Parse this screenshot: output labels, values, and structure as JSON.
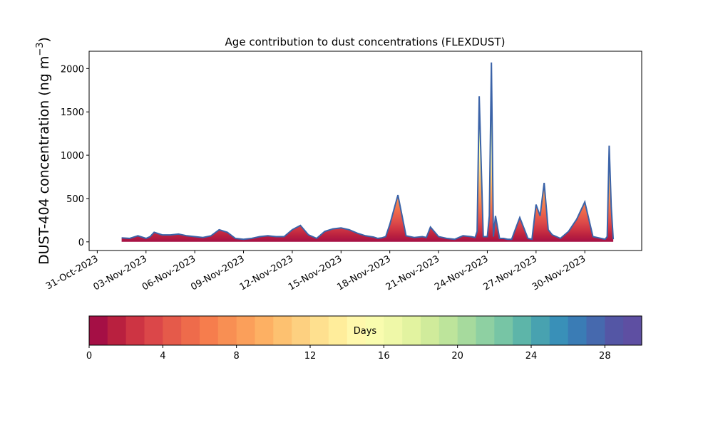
{
  "chart_data": [
    {
      "type": "area",
      "title": "Age contribution to dust concentrations (FLEXDUST)",
      "ylabel_main": "DUST-404 concentration (ng m",
      "ylabel_sup": "−3",
      "ylabel_close": ")",
      "xlabel": "",
      "x_is_date": true,
      "xlim": [
        "2023-10-30T12:00",
        "2023-12-03T12:00"
      ],
      "ylim": [
        -100,
        2200
      ],
      "y_ticks": [
        0,
        500,
        1000,
        1500,
        2000
      ],
      "x_ticks": [
        "31-Oct-2023",
        "03-Nov-2023",
        "06-Nov-2023",
        "09-Nov-2023",
        "12-Nov-2023",
        "15-Nov-2023",
        "18-Nov-2023",
        "21-Nov-2023",
        "24-Nov-2023",
        "27-Nov-2023",
        "30-Nov-2023"
      ],
      "grid": false,
      "series": [
        {
          "x": [
            "2023-11-01T12:00",
            "2023-11-02T00:00",
            "2023-11-02T12:00",
            "2023-11-03T00:00",
            "2023-11-03T06:00",
            "2023-11-03T12:00",
            "2023-11-04T00:00",
            "2023-11-04T12:00",
            "2023-11-05T00:00",
            "2023-11-05T12:00",
            "2023-11-06T00:00",
            "2023-11-06T12:00",
            "2023-11-07T00:00",
            "2023-11-07T12:00",
            "2023-11-08T00:00",
            "2023-11-08T12:00",
            "2023-11-09T00:00",
            "2023-11-09T12:00",
            "2023-11-10T00:00",
            "2023-11-10T12:00",
            "2023-11-11T00:00",
            "2023-11-11T06:00",
            "2023-11-11T12:00",
            "2023-11-12T00:00",
            "2023-11-12T12:00",
            "2023-11-13T00:00",
            "2023-11-13T12:00",
            "2023-11-14T00:00",
            "2023-11-14T12:00",
            "2023-11-15T00:00",
            "2023-11-15T12:00",
            "2023-11-16T00:00",
            "2023-11-16T12:00",
            "2023-11-17T00:00",
            "2023-11-17T06:00",
            "2023-11-17T12:00",
            "2023-11-17T18:00",
            "2023-11-18T00:00",
            "2023-11-18T12:00",
            "2023-11-19T00:00",
            "2023-11-19T12:00",
            "2023-11-20T00:00",
            "2023-11-20T06:00",
            "2023-11-20T12:00",
            "2023-11-21T00:00",
            "2023-11-21T12:00",
            "2023-11-22T00:00",
            "2023-11-22T12:00",
            "2023-11-23T00:00",
            "2023-11-23T06:00",
            "2023-11-23T09:00",
            "2023-11-23T12:00",
            "2023-11-23T18:00",
            "2023-11-24T00:00",
            "2023-11-24T03:00",
            "2023-11-24T06:00",
            "2023-11-24T09:00",
            "2023-11-24T12:00",
            "2023-11-24T18:00",
            "2023-11-25T00:00",
            "2023-11-25T06:00",
            "2023-11-25T12:00",
            "2023-11-26T00:00",
            "2023-11-26T12:00",
            "2023-11-26T18:00",
            "2023-11-27T00:00",
            "2023-11-27T06:00",
            "2023-11-27T12:00",
            "2023-11-27T18:00",
            "2023-11-28T00:00",
            "2023-11-28T06:00",
            "2023-11-28T12:00",
            "2023-11-29T00:00",
            "2023-11-29T12:00",
            "2023-11-30T00:00",
            "2023-11-30T12:00",
            "2023-12-01T00:00",
            "2023-12-01T06:00",
            "2023-12-01T09:00",
            "2023-12-01T12:00",
            "2023-12-01T15:00",
            "2023-12-01T18:00"
          ],
          "values": [
            45,
            40,
            70,
            40,
            60,
            110,
            80,
            80,
            90,
            70,
            60,
            50,
            70,
            140,
            110,
            40,
            30,
            40,
            60,
            70,
            60,
            60,
            60,
            140,
            190,
            80,
            40,
            120,
            150,
            160,
            140,
            100,
            70,
            55,
            40,
            45,
            60,
            200,
            540,
            70,
            50,
            60,
            50,
            170,
            60,
            40,
            30,
            70,
            60,
            50,
            120,
            1680,
            60,
            60,
            300,
            2070,
            60,
            300,
            40,
            40,
            30,
            30,
            280,
            40,
            30,
            430,
            300,
            680,
            140,
            80,
            60,
            40,
            120,
            260,
            460,
            60,
            40,
            30,
            60,
            1110,
            400,
            30
          ]
        }
      ],
      "colorbar": {
        "label": "Days",
        "min": 0,
        "max": 30,
        "ticks": [
          0,
          4,
          8,
          12,
          16,
          20,
          24,
          28
        ],
        "colors": [
          "#a50f45",
          "#b9203f",
          "#cd3443",
          "#db4749",
          "#e55a4a",
          "#ee6b4b",
          "#f67d4d",
          "#f88f53",
          "#fb9f5a",
          "#fdb063",
          "#fdc170",
          "#fdd080",
          "#fee08f",
          "#ffed9b",
          "#fff8ac",
          "#f9fcae",
          "#eff8a8",
          "#e2f3a0",
          "#d0eb9b",
          "#bde49b",
          "#a6da9d",
          "#8ed0a2",
          "#77c5a5",
          "#5db5a9",
          "#48a2b0",
          "#3990b8",
          "#3a7cb5",
          "#4669ae",
          "#5456a5",
          "#5e4fa2"
        ]
      }
    }
  ]
}
